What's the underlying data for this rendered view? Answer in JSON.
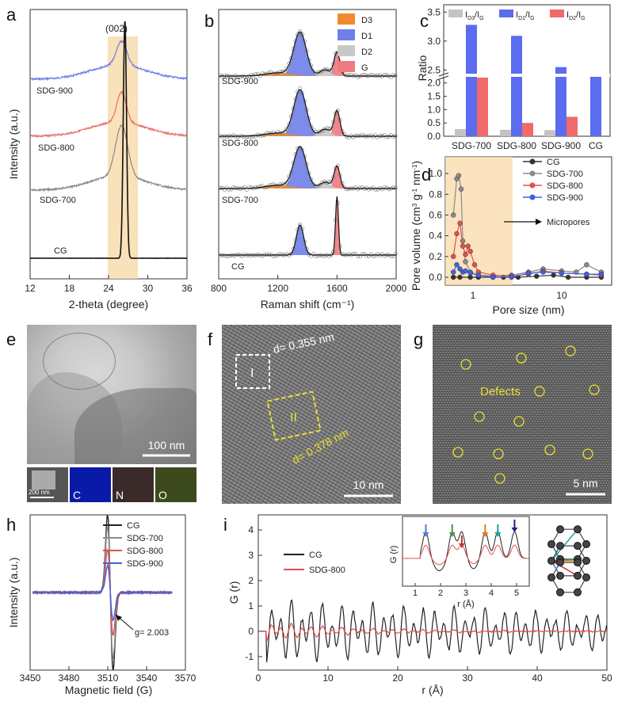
{
  "panels": {
    "a": {
      "letter": "a",
      "annotation": "(002)",
      "xlabel": "2-theta (degree)",
      "ylabel": "Intensity (a.u.)",
      "xticks": [
        "12",
        "18",
        "24",
        "30",
        "36"
      ],
      "curve_labels": [
        "SDG-900",
        "SDG-800",
        "SDG-700",
        "CG"
      ],
      "colors": [
        "#6f7ee8",
        "#e8726e",
        "#8a8a8a",
        "#111111"
      ]
    },
    "b": {
      "letter": "b",
      "xlabel": "Raman shift (cm⁻¹)",
      "xticks": [
        "800",
        "1200",
        "1600",
        "2000"
      ],
      "legend": [
        "D3",
        "D1",
        "D2",
        "G"
      ],
      "legend_colors": [
        "#f08a30",
        "#6f7ee8",
        "#c8c8c8",
        "#f07a80"
      ],
      "sample_labels": [
        "SDG-900",
        "SDG-800",
        "SDG-700",
        "CG"
      ]
    },
    "c": {
      "letter": "c",
      "ylabel": "Ratio",
      "legend": [
        "I₃/Iᴳ"
      ],
      "legend_main": [
        "I",
        "I",
        "I"
      ],
      "legend_sub1": [
        "D3",
        "D1",
        "D2"
      ],
      "legend_sub2": [
        "G",
        "G",
        "G"
      ],
      "yticks_low": [
        "0.0",
        "0.5",
        "1.0",
        "1.5",
        "2.0"
      ],
      "yticks_high": [
        "2.5",
        "3.0",
        "3.5"
      ],
      "categories": [
        "SDG-700",
        "SDG-800",
        "SDG-900",
        "CG"
      ]
    },
    "d": {
      "letter": "d",
      "ylabel_main": "Pore volume (cm",
      "ylabel_sup": "3",
      "ylabel_mid": " g",
      "ylabel_sup2": "-1",
      "ylabel_end": " nm",
      "ylabel_sup3": "-1",
      "ylabel_close": ")",
      "xlabel": "Pore size (nm)",
      "yticks": [
        "0.0",
        "0.2",
        "0.4",
        "0.6",
        "0.8",
        "1.0"
      ],
      "xticks": [
        "1",
        "10"
      ],
      "legend": [
        "CG",
        "SDG-700",
        "SDG-800",
        "SDG-900"
      ],
      "legend_colors": [
        "#333333",
        "#8a8a8a",
        "#e05050",
        "#4060e0"
      ],
      "annotation": "Micropores"
    },
    "e": {
      "letter": "e",
      "scale": "100 nm",
      "inset_scale": "200 nm",
      "maps": [
        "C",
        "N",
        "O"
      ]
    },
    "f": {
      "letter": "f",
      "region1": "I",
      "region2": "II",
      "d1": "d= 0.355 nm",
      "d2": "d= 0.378 nm",
      "scale": "10 nm"
    },
    "g": {
      "letter": "g",
      "label": "Defects",
      "scale": "5 nm"
    },
    "h": {
      "letter": "h",
      "xlabel": "Magnetic field (G)",
      "ylabel": "Intensity (a.u.)",
      "xticks": [
        "3450",
        "3480",
        "3510",
        "3540",
        "3570"
      ],
      "legend": [
        "CG",
        "SDG-700",
        "SDG-800",
        "SDG-900"
      ],
      "legend_colors": [
        "#222222",
        "#8a8a8a",
        "#e05050",
        "#4060e0"
      ],
      "annotation": "g= 2.003"
    },
    "i": {
      "letter": "i",
      "xlabel": "r (Å)",
      "ylabel": "G (r)",
      "xticks": [
        "0",
        "10",
        "20",
        "30",
        "40",
        "50"
      ],
      "yticks": [
        "-1",
        "0",
        "1",
        "2",
        "3",
        "4"
      ],
      "legend": [
        "CG",
        "SDG-800"
      ],
      "legend_colors": [
        "#222222",
        "#e05050"
      ],
      "inset_xlabel": "r (Å)",
      "inset_ylabel": "G (r)",
      "inset_xticks": [
        "1",
        "2",
        "3",
        "4",
        "5"
      ]
    }
  },
  "chart_data": [
    {
      "type": "bar",
      "categories": [
        "SDG-700",
        "SDG-800",
        "SDG-900",
        "CG"
      ],
      "series": [
        {
          "name": "ID3/IG",
          "values": [
            0.27,
            0.24,
            0.23,
            0
          ]
        },
        {
          "name": "ID1/IG",
          "values": [
            3.28,
            3.09,
            2.55,
            2.42
          ]
        },
        {
          "name": "ID2/IG",
          "values": [
            2.2,
            0.5,
            0.73,
            0
          ]
        }
      ],
      "ylim_break": [
        2.2,
        2.45
      ],
      "ylim": [
        0,
        3.6
      ]
    },
    {
      "type": "scatter",
      "xlabel": "Pore size (nm)",
      "ylabel": "Pore volume (cm3 g-1 nm-1)",
      "x_log": true,
      "xlim": [
        0.4,
        40
      ],
      "ylim": [
        -0.05,
        1.1
      ],
      "series": [
        {
          "name": "CG",
          "x": [
            0.5,
            0.6,
            0.8,
            1.0,
            1.5,
            2,
            3,
            5,
            8,
            12,
            20,
            30
          ],
          "y": [
            0,
            0,
            0,
            0,
            0,
            0,
            0,
            0.01,
            0.02,
            0.0,
            0.0,
            0
          ]
        },
        {
          "name": "SDG-700",
          "x": [
            0.5,
            0.55,
            0.58,
            0.62,
            0.65,
            0.7,
            0.8,
            1.0,
            1.5,
            2.5,
            4,
            6,
            10,
            15,
            20,
            30
          ],
          "y": [
            0.6,
            0.95,
            0.98,
            0.85,
            0.35,
            0.15,
            0.05,
            0.02,
            0.01,
            0.02,
            0.05,
            0.08,
            0.06,
            0.05,
            0.12,
            0.05
          ]
        },
        {
          "name": "SDG-800",
          "x": [
            0.5,
            0.55,
            0.6,
            0.65,
            0.7,
            0.75,
            0.8,
            0.9,
            1.0,
            1.5,
            2.5,
            4,
            6,
            10,
            20,
            30
          ],
          "y": [
            0.2,
            0.42,
            0.52,
            0.3,
            0.22,
            0.3,
            0.25,
            0.12,
            0.05,
            0.02,
            0.01,
            0.03,
            0.06,
            0.04,
            0.03,
            0.02
          ]
        },
        {
          "name": "SDG-900",
          "x": [
            0.5,
            0.55,
            0.6,
            0.65,
            0.7,
            0.8,
            1.0,
            1.5,
            2.5,
            4,
            6,
            10,
            20,
            30
          ],
          "y": [
            0.05,
            0.12,
            0.08,
            0.05,
            0.06,
            0.04,
            0.02,
            0.0,
            0.0,
            0.04,
            0.05,
            0.04,
            0.03,
            0.03
          ]
        }
      ]
    },
    {
      "type": "line",
      "xlabel": "Magnetic field (G)",
      "ylabel": "Intensity (a.u.)",
      "xlim": [
        3450,
        3570
      ],
      "series": [
        {
          "name": "CG",
          "amplitude": 1.0
        },
        {
          "name": "SDG-700",
          "amplitude": 0.85
        },
        {
          "name": "SDG-800",
          "amplitude": 0.55
        },
        {
          "name": "SDG-900",
          "amplitude": 0.35
        }
      ],
      "center": 3512
    },
    {
      "type": "line",
      "xlabel": "r (Å)",
      "ylabel": "G (r)",
      "xlim": [
        0,
        50
      ],
      "ylim": [
        -1.5,
        4
      ],
      "series": [
        {
          "name": "CG"
        },
        {
          "name": "SDG-800"
        }
      ]
    }
  ]
}
